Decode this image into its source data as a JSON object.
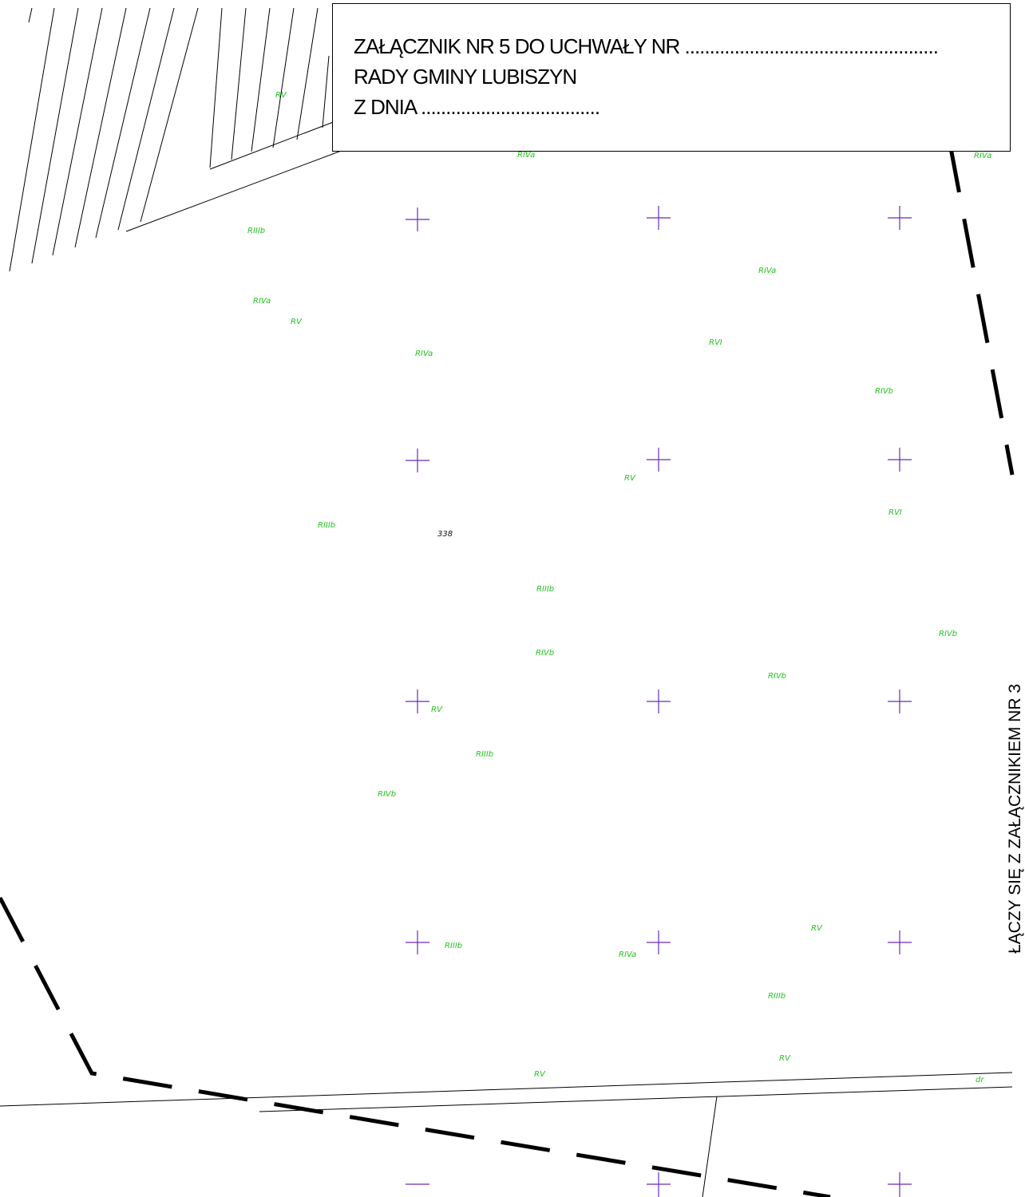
{
  "title": {
    "line1": "ZAŁĄCZNIK NR 5 DO UCHWAŁY NR ...................................................",
    "line2": "RADY GMINY LUBISZYN",
    "line3": "Z DNIA ...................................."
  },
  "side_note": "ŁĄCZY SIĘ Z ZAŁĄCZNIKIEM NR 3",
  "parcel_number": "338",
  "soil_class_labels": [
    "RV",
    "RIVa",
    "RIVa",
    "RIIIb",
    "RIVa",
    "RIVa",
    "RV",
    "RIVa",
    "RVI",
    "RIVb",
    "RV",
    "RVI",
    "RIIIb",
    "RIIIb",
    "RIVb",
    "RIVb",
    "RIVb",
    "RV",
    "RIIIb",
    "RIVb",
    "RV",
    "RIIIb",
    "RIVa",
    "RIIIb",
    "RV",
    "RV",
    "dr"
  ],
  "colors": {
    "soil_label": "#22c41d",
    "grid_cross": "#6a2ab8",
    "lines": "#000000",
    "background": "#ffffff"
  }
}
